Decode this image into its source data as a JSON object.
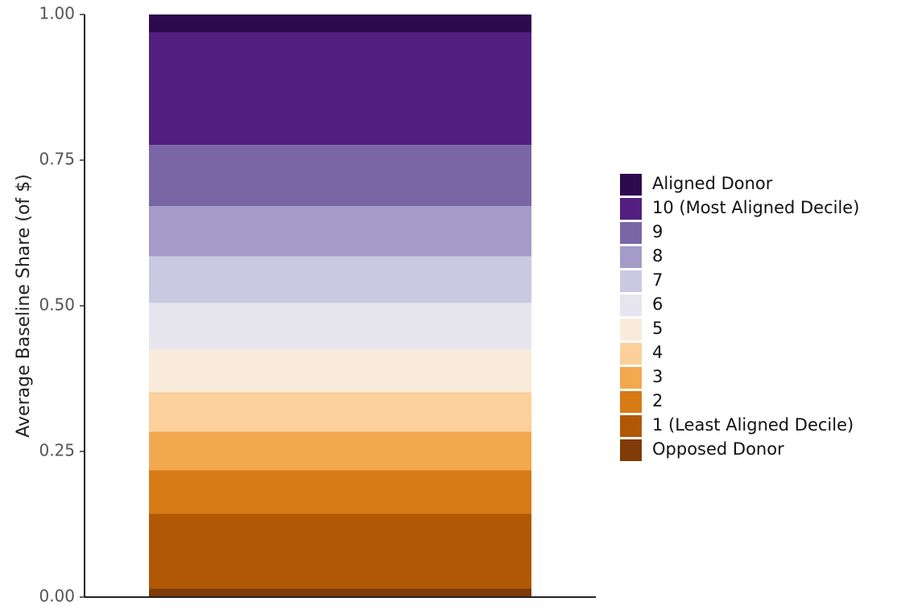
{
  "chart_data": {
    "type": "stacked-bar",
    "ylabel": "Average Baseline Share (of $)",
    "categories": [
      null
    ],
    "ylim": [
      0,
      1
    ],
    "yticks": [
      {
        "value": 0,
        "label": "0.00"
      },
      {
        "value": 0.25,
        "label": "0.25"
      },
      {
        "value": 0.5,
        "label": "0.50"
      },
      {
        "value": 0.75,
        "label": "0.75"
      },
      {
        "value": 1,
        "label": "1.00"
      }
    ],
    "legend": "right",
    "series": [
      {
        "name": "Opposed Donor",
        "color": "#7f3b08",
        "values": [
          0.015
        ]
      },
      {
        "name": "1 (Least Aligned Decile)",
        "color": "#b15806",
        "values": [
          0.128
        ]
      },
      {
        "name": "2",
        "color": "#d87a16",
        "values": [
          0.075
        ]
      },
      {
        "name": "3",
        "color": "#f2a84e",
        "values": [
          0.066
        ]
      },
      {
        "name": "4",
        "color": "#fcd09b",
        "values": [
          0.068
        ]
      },
      {
        "name": "5",
        "color": "#f9ebdb",
        "values": [
          0.073
        ]
      },
      {
        "name": "6",
        "color": "#e7e6ef",
        "values": [
          0.08
        ]
      },
      {
        "name": "7",
        "color": "#cbc9e2",
        "values": [
          0.08
        ]
      },
      {
        "name": "8",
        "color": "#a49bc8",
        "values": [
          0.086
        ]
      },
      {
        "name": "9",
        "color": "#7a66a5",
        "values": [
          0.105
        ]
      },
      {
        "name": "10 (Most Aligned Decile)",
        "color": "#521f80",
        "values": [
          0.193
        ]
      },
      {
        "name": "Aligned Donor",
        "color": "#2d0a4e",
        "values": [
          0.031
        ]
      }
    ]
  }
}
